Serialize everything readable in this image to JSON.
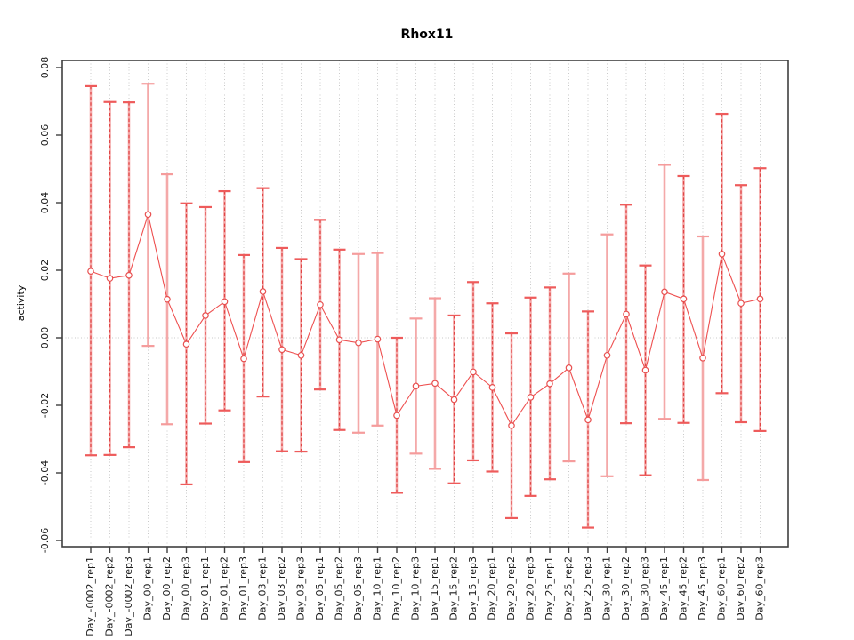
{
  "title": "Rhox11",
  "chart_data": {
    "type": "line",
    "title": "Rhox11",
    "xlabel": "",
    "ylabel": "activity",
    "ylim": [
      -0.06,
      0.08
    ],
    "y_tick_values": [
      0.08,
      0.06,
      0.04,
      0.02,
      0.0,
      -0.02,
      -0.04,
      -0.06
    ],
    "y_tick_labels": [
      "0.08",
      "0.06",
      "0.04",
      "0.02",
      "0.00",
      "-0.02",
      "-0.04",
      "-0.06"
    ],
    "grid": "light dotted vertical line at every category; light dotted horizontal line at y=0",
    "legend": "none",
    "marker": "open-circle",
    "categories": [
      "Day_-0002_rep1",
      "Day_-0002_rep2",
      "Day_-0002_rep3",
      "Day_00_rep1",
      "Day_00_rep2",
      "Day_00_rep3",
      "Day_01_rep1",
      "Day_01_rep2",
      "Day_01_rep3",
      "Day_03_rep1",
      "Day_03_rep2",
      "Day_03_rep3",
      "Day_05_rep1",
      "Day_05_rep2",
      "Day_05_rep3",
      "Day_10_rep1",
      "Day_10_rep2",
      "Day_10_rep3",
      "Day_15_rep1",
      "Day_15_rep2",
      "Day_15_rep3",
      "Day_20_rep1",
      "Day_20_rep2",
      "Day_20_rep3",
      "Day_25_rep1",
      "Day_25_rep2",
      "Day_25_rep3",
      "Day_30_rep1",
      "Day_30_rep2",
      "Day_30_rep3",
      "Day_45_rep1",
      "Day_45_rep2",
      "Day_45_rep3",
      "Day_60_rep1",
      "Day_60_rep2",
      "Day_60_rep3"
    ],
    "series": [
      {
        "name": "activity",
        "values": [
          0.0197,
          0.0176,
          0.0185,
          0.0365,
          0.0114,
          -0.0019,
          0.0066,
          0.0107,
          -0.0062,
          0.0137,
          -0.0035,
          -0.0052,
          0.0098,
          -0.0006,
          -0.0015,
          -0.0004,
          -0.023,
          -0.0143,
          -0.0135,
          -0.0183,
          -0.0101,
          -0.0147,
          -0.026,
          -0.0176,
          -0.0136,
          -0.0089,
          -0.0243,
          -0.0052,
          0.007,
          -0.0096,
          0.0136,
          0.0115,
          -0.006,
          0.0248,
          0.0102,
          0.0115
        ],
        "error_upper": [
          0.0745,
          0.0698,
          0.0697,
          0.0752,
          0.0484,
          0.0398,
          0.0387,
          0.0434,
          0.0245,
          0.0443,
          0.0266,
          0.0233,
          0.0349,
          0.0261,
          0.0248,
          0.0251,
          0.0,
          0.0057,
          0.0117,
          0.0066,
          0.0165,
          0.0102,
          0.0013,
          0.0119,
          0.0149,
          0.019,
          0.0078,
          0.0306,
          0.0394,
          0.0214,
          0.0512,
          0.0479,
          0.03,
          0.0663,
          0.0452,
          0.0502
        ],
        "error_lower": [
          -0.0348,
          -0.0347,
          -0.0324,
          -0.0024,
          -0.0256,
          -0.0434,
          -0.0254,
          -0.0215,
          -0.0368,
          -0.0174,
          -0.0336,
          -0.0337,
          -0.0153,
          -0.0273,
          -0.0281,
          -0.026,
          -0.0459,
          -0.0343,
          -0.0388,
          -0.0431,
          -0.0363,
          -0.0396,
          -0.0534,
          -0.0468,
          -0.0419,
          -0.0366,
          -0.0562,
          -0.041,
          -0.0253,
          -0.0407,
          -0.024,
          -0.0252,
          -0.0421,
          -0.0164,
          -0.025,
          -0.0276
        ],
        "error_bar_dashed": [
          true,
          true,
          true,
          false,
          false,
          true,
          true,
          true,
          true,
          true,
          true,
          true,
          true,
          true,
          false,
          false,
          true,
          false,
          false,
          true,
          true,
          true,
          true,
          true,
          true,
          false,
          true,
          false,
          true,
          true,
          false,
          true,
          false,
          true,
          true,
          true
        ]
      }
    ],
    "colors": {
      "series_line": "#ee5050",
      "marker_stroke": "#e85050",
      "error_bar_light": "#f4a9a9",
      "error_bar_dash": "#e04545",
      "cap_solid": "#f59c9c",
      "cap_dash": "#ee5b5b",
      "grid": "#c9c9c9",
      "axis": "#3f3f3f",
      "tick_text": "#1a1a1a",
      "background": "#ffffff"
    }
  }
}
